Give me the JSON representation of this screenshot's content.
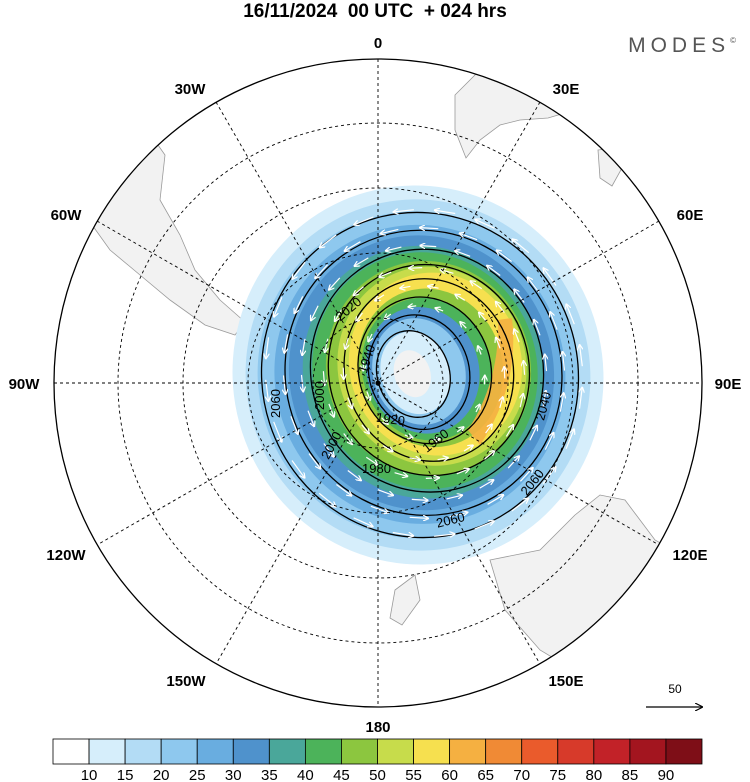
{
  "title": "16/11/2024  00 UTC  + 024 hrs",
  "brand": {
    "name": "MODES",
    "mark": "©"
  },
  "longitude_labels": [
    "0",
    "30E",
    "60E",
    "90E",
    "120E",
    "150E",
    "180",
    "150W",
    "120W",
    "90W",
    "60W",
    "30W"
  ],
  "contour_labels": [
    "1920",
    "1940",
    "1960",
    "1980",
    "2000",
    "2000",
    "2020",
    "2040",
    "2060",
    "2060",
    "2060"
  ],
  "colorbar": {
    "levels": [
      "10",
      "15",
      "20",
      "25",
      "30",
      "35",
      "40",
      "45",
      "50",
      "55",
      "60",
      "65",
      "70",
      "75",
      "80",
      "85",
      "90"
    ],
    "colors": [
      "#ffffff",
      "#d6eefb",
      "#b3dcf5",
      "#8ec8ee",
      "#69ade0",
      "#4f92cc",
      "#4aa79a",
      "#4cb35a",
      "#8cc63f",
      "#c7dc4b",
      "#f6e04f",
      "#f5b041",
      "#f08a35",
      "#ea5b2c",
      "#d73a2a",
      "#c22228",
      "#a3151f",
      "#7e0e17"
    ]
  },
  "reference_vector": {
    "value": "50"
  }
}
